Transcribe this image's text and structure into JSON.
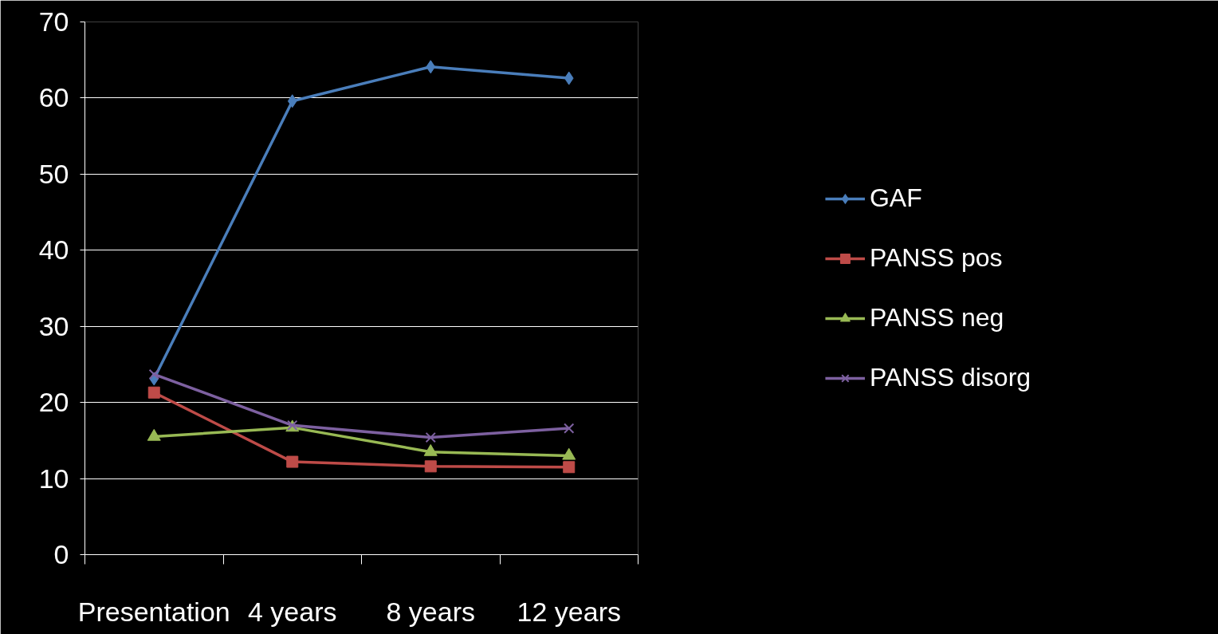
{
  "chart_data": {
    "type": "line",
    "categories": [
      "Presentation",
      "4 years",
      "8 years",
      "12 years"
    ],
    "ylim": [
      0,
      70
    ],
    "yticks": [
      0,
      10,
      20,
      30,
      40,
      50,
      60,
      70
    ],
    "grid": "y",
    "legend": "right",
    "line_style": "solid",
    "series": [
      {
        "name": "GAF",
        "color": "#4a7ebb",
        "marker": "diamond",
        "values": [
          23.1,
          59.6,
          64.1,
          62.6
        ]
      },
      {
        "name": "PANSS pos",
        "color": "#be4b48",
        "marker": "square",
        "values": [
          21.3,
          12.2,
          11.6,
          11.5
        ]
      },
      {
        "name": "PANSS neg",
        "color": "#98b954",
        "marker": "triangle",
        "values": [
          15.5,
          16.7,
          13.5,
          13.0
        ]
      },
      {
        "name": "PANSS disorg",
        "color": "#7d60a0",
        "marker": "cross",
        "values": [
          23.7,
          17.0,
          15.4,
          16.6
        ]
      }
    ]
  }
}
